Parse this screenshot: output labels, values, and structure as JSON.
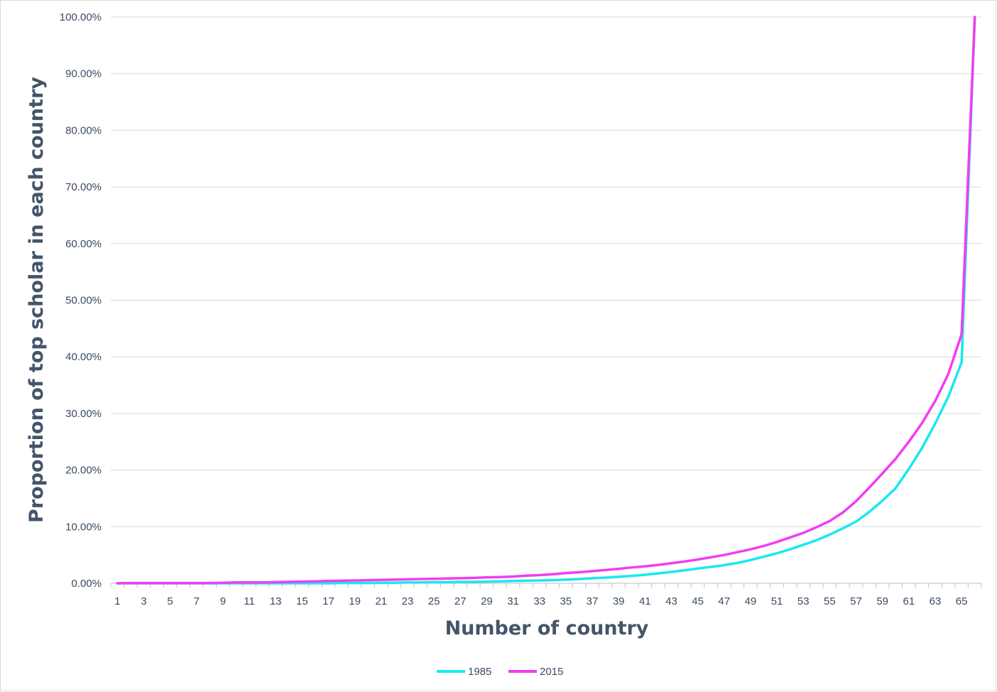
{
  "chart_data": {
    "type": "line",
    "title": "",
    "xlabel": "Number of country",
    "ylabel": "Proportion of top scholar in each country",
    "x_tick_labels": [
      "1",
      "3",
      "5",
      "7",
      "9",
      "11",
      "13",
      "15",
      "17",
      "19",
      "21",
      "23",
      "25",
      "27",
      "29",
      "31",
      "33",
      "35",
      "37",
      "39",
      "41",
      "43",
      "45",
      "47",
      "49",
      "51",
      "53",
      "55",
      "57",
      "59",
      "61",
      "63",
      "65"
    ],
    "y_tick_labels": [
      "0.00%",
      "10.00%",
      "20.00%",
      "30.00%",
      "40.00%",
      "50.00%",
      "60.00%",
      "70.00%",
      "80.00%",
      "90.00%",
      "100.00%"
    ],
    "ylim": [
      0,
      100
    ],
    "x_count": 66,
    "grid": "horizontal",
    "legend_position": "bottom",
    "series": [
      {
        "name": "1985",
        "color": "#19e8f0",
        "values": [
          0.0,
          0.0,
          0.0,
          0.0,
          0.0,
          0.0,
          0.0,
          0.0,
          0.0,
          0.0,
          0.0,
          0.0,
          0.0,
          0.0,
          0.0,
          0.0,
          0.0,
          0.05,
          0.05,
          0.05,
          0.1,
          0.1,
          0.15,
          0.15,
          0.2,
          0.2,
          0.25,
          0.25,
          0.3,
          0.35,
          0.4,
          0.45,
          0.5,
          0.55,
          0.65,
          0.75,
          0.9,
          1.0,
          1.15,
          1.3,
          1.5,
          1.75,
          2.0,
          2.3,
          2.6,
          2.9,
          3.2,
          3.6,
          4.1,
          4.7,
          5.3,
          6.0,
          6.8,
          7.6,
          8.6,
          9.7,
          10.9,
          12.6,
          14.6,
          16.8,
          20.2,
          23.9,
          28.2,
          33.0,
          39.0,
          100.0
        ]
      },
      {
        "name": "2015",
        "color": "#f23cf2",
        "values": [
          0.0,
          0.05,
          0.05,
          0.05,
          0.05,
          0.05,
          0.05,
          0.05,
          0.1,
          0.15,
          0.15,
          0.15,
          0.2,
          0.25,
          0.3,
          0.35,
          0.4,
          0.45,
          0.5,
          0.55,
          0.6,
          0.65,
          0.7,
          0.75,
          0.8,
          0.85,
          0.9,
          0.95,
          1.05,
          1.1,
          1.2,
          1.35,
          1.45,
          1.6,
          1.8,
          1.95,
          2.15,
          2.35,
          2.55,
          2.8,
          3.0,
          3.25,
          3.55,
          3.85,
          4.2,
          4.6,
          5.0,
          5.5,
          6.0,
          6.6,
          7.3,
          8.1,
          8.9,
          9.9,
          11.0,
          12.5,
          14.5,
          16.9,
          19.4,
          22.0,
          25.0,
          28.3,
          32.2,
          37.0,
          44.0,
          100.0
        ]
      }
    ]
  }
}
